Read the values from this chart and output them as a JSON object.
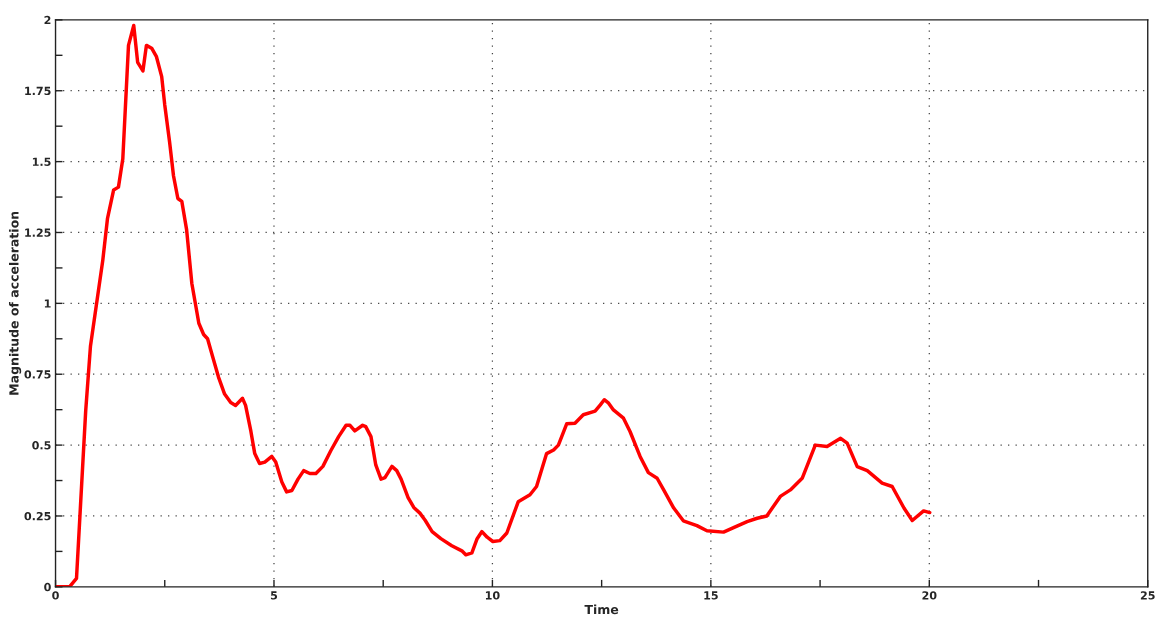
{
  "chart_data": {
    "type": "line",
    "xlabel": "Time",
    "ylabel": "Magnitude of acceleration",
    "xlim": [
      0,
      25
    ],
    "ylim": [
      0,
      2
    ],
    "xticks": [
      0,
      {
        "value": 2.5,
        "label": null
      },
      5,
      {
        "value": 7.5,
        "label": null
      },
      10,
      {
        "value": 12.5,
        "label": null
      },
      15,
      {
        "value": 17.5,
        "label": null
      },
      20,
      {
        "value": 22.5,
        "label": null
      },
      25
    ],
    "yticks": [
      0,
      {
        "value": 0.125,
        "label": null
      },
      0.25,
      {
        "value": 0.375,
        "label": null
      },
      0.5,
      {
        "value": 0.625,
        "label": null
      },
      0.75,
      {
        "value": 0.875,
        "label": null
      },
      1,
      {
        "value": 1.125,
        "label": null
      },
      1.25,
      {
        "value": 1.375,
        "label": null
      },
      1.5,
      {
        "value": 1.625,
        "label": null
      },
      1.75,
      {
        "value": 1.875,
        "label": null
      },
      2
    ],
    "grid": true,
    "line_style": "solid",
    "marker": "none",
    "series": [
      {
        "color": "#ff0000",
        "x": [
          0,
          0.32,
          0.48,
          0.69,
          0.8,
          1.08,
          1.19,
          1.33,
          1.44,
          1.54,
          1.67,
          1.79,
          1.88,
          2.0,
          2.08,
          2.2,
          2.31,
          2.43,
          2.5,
          2.61,
          2.7,
          2.8,
          2.89,
          3.0,
          3.12,
          3.28,
          3.39,
          3.48,
          3.6,
          3.73,
          3.87,
          4.01,
          4.12,
          4.28,
          4.35,
          4.47,
          4.56,
          4.67,
          4.79,
          4.95,
          5.04,
          5.18,
          5.29,
          5.41,
          5.55,
          5.68,
          5.82,
          5.96,
          6.12,
          6.3,
          6.48,
          6.65,
          6.74,
          6.85,
          7.03,
          7.1,
          7.22,
          7.33,
          7.45,
          7.54,
          7.7,
          7.81,
          7.91,
          8.07,
          8.2,
          8.34,
          8.46,
          8.62,
          8.82,
          9.07,
          9.3,
          9.39,
          9.53,
          9.65,
          9.76,
          9.88,
          10.01,
          10.17,
          10.33,
          10.59,
          10.86,
          11.01,
          11.24,
          11.4,
          11.51,
          11.7,
          11.89,
          12.08,
          12.35,
          12.47,
          12.56,
          12.66,
          12.77,
          13.0,
          13.15,
          13.38,
          13.57,
          13.77,
          13.92,
          14.15,
          14.37,
          14.68,
          14.91,
          15.29,
          15.52,
          15.83,
          16.06,
          16.28,
          16.59,
          16.82,
          17.09,
          17.39,
          17.66,
          17.97,
          18.12,
          18.35,
          18.58,
          18.92,
          19.15,
          19.42,
          19.61,
          19.87,
          20.01
        ],
        "values": [
          0,
          0,
          0.03,
          0.62,
          0.85,
          1.15,
          1.3,
          1.4,
          1.41,
          1.51,
          1.91,
          1.98,
          1.85,
          1.82,
          1.91,
          1.9,
          1.87,
          1.8,
          1.7,
          1.57,
          1.45,
          1.37,
          1.36,
          1.26,
          1.07,
          0.93,
          0.89,
          0.875,
          0.81,
          0.74,
          0.68,
          0.65,
          0.64,
          0.665,
          0.64,
          0.55,
          0.47,
          0.435,
          0.44,
          0.46,
          0.44,
          0.37,
          0.335,
          0.34,
          0.38,
          0.41,
          0.4,
          0.4,
          0.425,
          0.48,
          0.53,
          0.57,
          0.57,
          0.55,
          0.57,
          0.565,
          0.53,
          0.43,
          0.38,
          0.385,
          0.425,
          0.41,
          0.38,
          0.315,
          0.28,
          0.26,
          0.235,
          0.195,
          0.17,
          0.145,
          0.127,
          0.113,
          0.12,
          0.17,
          0.195,
          0.175,
          0.16,
          0.163,
          0.19,
          0.3,
          0.325,
          0.354,
          0.47,
          0.483,
          0.5,
          0.575,
          0.577,
          0.607,
          0.62,
          0.642,
          0.66,
          0.648,
          0.624,
          0.595,
          0.548,
          0.46,
          0.403,
          0.383,
          0.342,
          0.278,
          0.233,
          0.216,
          0.198,
          0.193,
          0.209,
          0.23,
          0.242,
          0.25,
          0.319,
          0.342,
          0.383,
          0.5,
          0.495,
          0.524,
          0.507,
          0.424,
          0.41,
          0.366,
          0.354,
          0.278,
          0.234,
          0.268,
          0.262
        ]
      }
    ]
  }
}
